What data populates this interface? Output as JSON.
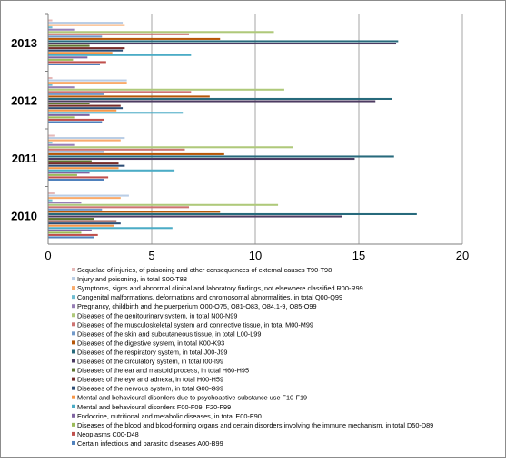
{
  "chart_data": {
    "type": "bar",
    "orientation": "horizontal",
    "categories": [
      "2010",
      "2011",
      "2012",
      "2013"
    ],
    "xlim": [
      0,
      20
    ],
    "xticks": [
      "0",
      "5",
      "10",
      "15",
      "20"
    ],
    "grid": true,
    "legend_position": "bottom",
    "series": [
      {
        "name": "Certain infectious and parasitic diseases  A00-B99",
        "color": "#4f81bd",
        "values": [
          2.2,
          2.7,
          2.6,
          2.5
        ]
      },
      {
        "name": "Neoplasms C00-D48",
        "color": "#c0504d",
        "values": [
          2.4,
          2.9,
          2.7,
          2.8
        ]
      },
      {
        "name": "Diseases of the blood and blood-forming organs and certain disorders involving the immune mechanism, in total D50-D89",
        "color": "#9bbb59",
        "values": [
          1.6,
          1.4,
          1.3,
          1.2
        ]
      },
      {
        "name": "Endocrine, nutritional and metabolic diseases, in total E00-E90",
        "color": "#8064a2",
        "values": [
          2.1,
          2.0,
          2.0,
          1.9
        ]
      },
      {
        "name": "Mental and behavioural disorders F00-F09; F20-F99",
        "color": "#4bacc6",
        "values": [
          6.0,
          6.1,
          6.5,
          6.9
        ]
      },
      {
        "name": "Mental and behavioural disorders due to psychoactive substance use F10-F19",
        "color": "#f79646",
        "values": [
          3.2,
          3.4,
          3.3,
          3.1
        ]
      },
      {
        "name": "Diseases of the nervous system, in total G00-G99",
        "color": "#2c4d75",
        "values": [
          3.5,
          3.7,
          3.6,
          3.6
        ]
      },
      {
        "name": "Diseases of the eye and adnexa, in total H00-H59",
        "color": "#772c2a",
        "values": [
          3.3,
          3.4,
          3.5,
          3.7
        ]
      },
      {
        "name": "Diseases of the ear and mastoid process, in total H60-H95",
        "color": "#5f7530",
        "values": [
          2.2,
          2.1,
          2.0,
          2.0
        ]
      },
      {
        "name": "Diseases of the circulatory system, in total I00-I99",
        "color": "#4d3b62",
        "values": [
          14.2,
          14.8,
          15.8,
          16.8
        ]
      },
      {
        "name": "Diseases of the respiratory system, in total J00-J99",
        "color": "#276a7c",
        "values": [
          17.8,
          16.7,
          16.6,
          16.9
        ]
      },
      {
        "name": "Diseases of the digestive system, in total K00-K93",
        "color": "#b65708",
        "values": [
          8.3,
          8.5,
          7.8,
          8.3
        ]
      },
      {
        "name": "Diseases of the skin and subcutaneous tissue, in total L00-L99",
        "color": "#729aca",
        "values": [
          2.6,
          2.7,
          2.7,
          2.6
        ]
      },
      {
        "name": "Diseases of the musculoskeletal system and connective tissue, in total M00-M99",
        "color": "#cd7371",
        "values": [
          6.8,
          6.6,
          6.9,
          6.8
        ]
      },
      {
        "name": "Diseases of the genitourinary system, in total N00-N99",
        "color": "#afc97a",
        "values": [
          11.1,
          11.8,
          11.4,
          10.9
        ]
      },
      {
        "name": "Pregnancy, childbirth and the puerperium O00-O75, O81-O83, O84.1-9, O85-O99",
        "color": "#977eb6",
        "values": [
          1.6,
          1.3,
          1.3,
          1.3
        ]
      },
      {
        "name": "Congenital malformations, deformations and chromosomal abnormalities, in total Q00-Q99",
        "color": "#6fbdd1",
        "values": [
          0.2,
          0.2,
          0.2,
          0.2
        ]
      },
      {
        "name": "Symptoms, signs and abnormal clinical and laboratory findings, not elsewhere classified  R00-R99",
        "color": "#f9ab6b",
        "values": [
          3.5,
          3.5,
          3.8,
          3.7
        ]
      },
      {
        "name": "Injury and poisoning, in total S00-T88",
        "color": "#b9cde5",
        "values": [
          3.9,
          3.7,
          3.8,
          3.6
        ]
      },
      {
        "name": "Sequelae of injuries, of poisoning and other consequences of external causes T90-T98",
        "color": "#e6b9b8",
        "values": [
          0.3,
          0.3,
          0.2,
          0.2
        ]
      }
    ]
  }
}
